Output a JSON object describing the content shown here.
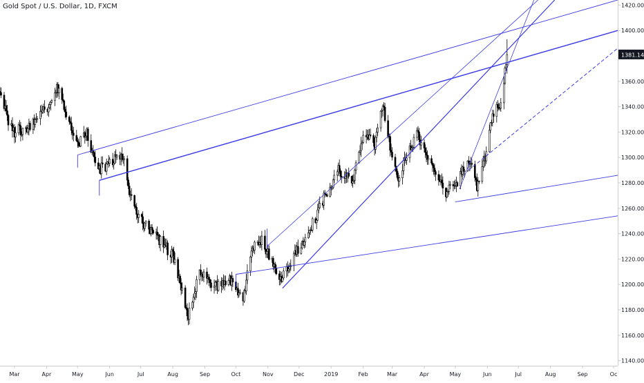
{
  "header": {
    "symbol_title": "Gold Spot / U.S. Dollar, 1D, FXCM"
  },
  "colors": {
    "background": "#ffffff",
    "candle_up": "#ffffff",
    "candle_down": "#000000",
    "trendline": "#3a3ae6",
    "price_label_bg": "#131722",
    "axis_text": "#131722",
    "axis_border": "#cccccc"
  },
  "price_label": {
    "value": "1381.14"
  },
  "chart_data": {
    "type": "candlestick",
    "title": "Gold Spot / U.S. Dollar, 1D, FXCM",
    "y_axis": {
      "position": "right",
      "range": [
        1136,
        1424
      ],
      "ticks": [
        1140,
        1160,
        1180,
        1200,
        1220,
        1240,
        1260,
        1280,
        1300,
        1320,
        1340,
        1360,
        1380,
        1400,
        1420
      ],
      "tick_labels": [
        "1140.00",
        "1160.00",
        "1180.00",
        "1200.00",
        "1220.00",
        "1240.00",
        "1260.00",
        "1280.00",
        "1300.00",
        "1320.00",
        "1340.00",
        "1360.00",
        "1381.14",
        "1400.00",
        "1420.00"
      ]
    },
    "x_axis": {
      "range": [
        "2018-02-15",
        "2019-10-05"
      ],
      "ticks": [
        "2018-03-01",
        "2018-04-01",
        "2018-05-01",
        "2018-06-01",
        "2018-07-01",
        "2018-08-01",
        "2018-09-01",
        "2018-10-01",
        "2018-11-01",
        "2018-12-01",
        "2019-01-01",
        "2019-02-01",
        "2019-03-01",
        "2019-04-01",
        "2019-05-01",
        "2019-06-01",
        "2019-07-01",
        "2019-08-01",
        "2019-09-01",
        "2019-10-01"
      ],
      "tick_labels": [
        "Mar",
        "Apr",
        "May",
        "Jun",
        "Jul",
        "Aug",
        "Sep",
        "Oct",
        "Nov",
        "Dec",
        "2019",
        "Feb",
        "Mar",
        "Apr",
        "May",
        "Jun",
        "Jul",
        "Aug",
        "Sep",
        "Oc"
      ]
    },
    "price_anchors": [
      [
        "2018-02-15",
        1352
      ],
      [
        "2018-02-22",
        1330
      ],
      [
        "2018-03-01",
        1320
      ],
      [
        "2018-03-15",
        1325
      ],
      [
        "2018-04-01",
        1338
      ],
      [
        "2018-04-11",
        1355
      ],
      [
        "2018-04-20",
        1335
      ],
      [
        "2018-05-01",
        1312
      ],
      [
        "2018-05-10",
        1318
      ],
      [
        "2018-05-21",
        1290
      ],
      [
        "2018-06-01",
        1295
      ],
      [
        "2018-06-14",
        1302
      ],
      [
        "2018-06-20",
        1270
      ],
      [
        "2018-07-01",
        1250
      ],
      [
        "2018-07-15",
        1240
      ],
      [
        "2018-08-01",
        1222
      ],
      [
        "2018-08-16",
        1175
      ],
      [
        "2018-08-27",
        1210
      ],
      [
        "2018-09-10",
        1198
      ],
      [
        "2018-09-25",
        1205
      ],
      [
        "2018-10-08",
        1188
      ],
      [
        "2018-10-15",
        1226
      ],
      [
        "2018-10-26",
        1236
      ],
      [
        "2018-11-13",
        1202
      ],
      [
        "2018-11-25",
        1222
      ],
      [
        "2018-12-10",
        1240
      ],
      [
        "2018-12-25",
        1268
      ],
      [
        "2019-01-08",
        1290
      ],
      [
        "2019-01-22",
        1282
      ],
      [
        "2019-02-01",
        1318
      ],
      [
        "2019-02-12",
        1310
      ],
      [
        "2019-02-20",
        1342
      ],
      [
        "2019-03-01",
        1300
      ],
      [
        "2019-03-07",
        1285
      ],
      [
        "2019-03-25",
        1318
      ],
      [
        "2019-04-05",
        1295
      ],
      [
        "2019-04-23",
        1272
      ],
      [
        "2019-05-05",
        1284
      ],
      [
        "2019-05-15",
        1298
      ],
      [
        "2019-05-22",
        1276
      ],
      [
        "2019-05-30",
        1300
      ],
      [
        "2019-06-06",
        1336
      ],
      [
        "2019-06-14",
        1340
      ],
      [
        "2019-06-20",
        1380
      ]
    ],
    "trendlines": [
      {
        "p1": [
          "2018-05-01",
          1302
        ],
        "p2": [
          "2019-10-05",
          1424
        ],
        "style": "solid",
        "width": 0.9
      },
      {
        "p1": [
          "2018-05-22",
          1282
        ],
        "p2": [
          "2019-10-05",
          1400
        ],
        "style": "solid",
        "width": 1.4
      },
      {
        "p1": [
          "2018-11-15",
          1197
        ],
        "p2": [
          "2019-08-05",
          1424
        ],
        "style": "solid",
        "width": 1.2
      },
      {
        "p1": [
          "2018-10-31",
          1230
        ],
        "p2": [
          "2019-07-20",
          1424
        ],
        "style": "solid",
        "width": 0.8
      },
      {
        "p1": [
          "2019-05-05",
          1275
        ],
        "p2": [
          "2019-07-16",
          1424
        ],
        "style": "solid",
        "width": 0.8
      },
      {
        "p1": [
          "2019-05-01",
          1265
        ],
        "p2": [
          "2019-10-05",
          1286
        ],
        "style": "solid",
        "width": 0.9
      },
      {
        "p1": [
          "2018-10-01",
          1208
        ],
        "p2": [
          "2019-10-05",
          1254
        ],
        "style": "solid",
        "width": 0.9
      },
      {
        "p1": [
          "2019-05-14",
          1290
        ],
        "p2": [
          "2019-10-05",
          1386
        ],
        "style": "dashed",
        "width": 1.0
      }
    ],
    "segments": [
      {
        "p1": [
          "2018-10-01",
          1208
        ],
        "p2": [
          "2018-10-01",
          1198
        ]
      },
      {
        "p1": [
          "2018-10-31",
          1244
        ],
        "p2": [
          "2018-10-31",
          1228
        ]
      },
      {
        "p1": [
          "2018-05-01",
          1302
        ],
        "p2": [
          "2018-05-01",
          1292
        ]
      },
      {
        "p1": [
          "2018-05-22",
          1282
        ],
        "p2": [
          "2018-05-22",
          1270
        ]
      }
    ]
  }
}
